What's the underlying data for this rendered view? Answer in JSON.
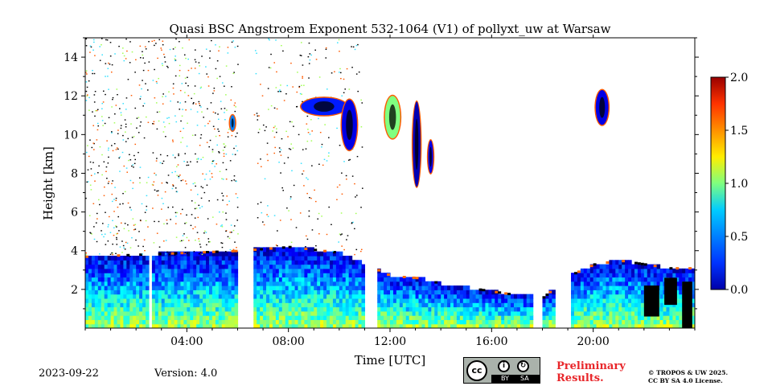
{
  "chart_data": {
    "type": "heatmap",
    "title": "Quasi BSC Angstroem Exponent 532-1064 (V1) of pollyxt_uw at Warsaw",
    "xlabel": "Time [UTC]",
    "ylabel": "Height [km]",
    "xlim": [
      0,
      24
    ],
    "ylim": [
      0,
      15
    ],
    "x_ticks": [
      "04:00",
      "08:00",
      "12:00",
      "16:00",
      "20:00"
    ],
    "x_tick_values": [
      4,
      8,
      12,
      16,
      20
    ],
    "y_ticks": [
      "2",
      "4",
      "6",
      "8",
      "10",
      "12",
      "14"
    ],
    "y_tick_values": [
      2,
      4,
      6,
      8,
      10,
      12,
      14
    ],
    "colorbar": {
      "range": [
        0,
        2
      ],
      "ticks": [
        "0.0",
        "0.5",
        "1.0",
        "1.5",
        "2.0"
      ],
      "tick_values": [
        0,
        0.5,
        1,
        1.5,
        2
      ],
      "colormap": "jet",
      "missing_color": "#000000"
    },
    "boundary_layer_top_km": [
      [
        0,
        3.6
      ],
      [
        2,
        3.7
      ],
      [
        4,
        3.8
      ],
      [
        6,
        3.9
      ],
      [
        8,
        4.1
      ],
      [
        10,
        3.8
      ],
      [
        11,
        3.2
      ],
      [
        12,
        2.6
      ],
      [
        13,
        2.5
      ],
      [
        14,
        2.2
      ],
      [
        15,
        2.0
      ],
      [
        16,
        1.8
      ],
      [
        17,
        1.6
      ],
      [
        18,
        1.5
      ],
      [
        19,
        2.6
      ],
      [
        20,
        3.2
      ],
      [
        21,
        3.4
      ],
      [
        22,
        3.2
      ],
      [
        23,
        3.0
      ],
      [
        24,
        3.0
      ]
    ],
    "cloud_features": [
      {
        "t_start": 5.7,
        "t_end": 5.9,
        "h_bottom": 10.2,
        "h_top": 11.0,
        "value": 0.5
      },
      {
        "t_start": 8.5,
        "t_end": 10.3,
        "h_bottom": 11.0,
        "h_top": 11.9,
        "value": 0.3
      },
      {
        "t_start": 10.1,
        "t_end": 10.7,
        "h_bottom": 9.2,
        "h_top": 11.8,
        "value": 0.2
      },
      {
        "t_start": 11.8,
        "t_end": 12.4,
        "h_bottom": 9.8,
        "h_top": 12.0,
        "value": 1.0
      },
      {
        "t_start": 12.9,
        "t_end": 13.2,
        "h_bottom": 7.3,
        "h_top": 11.7,
        "value": 0.1
      },
      {
        "t_start": 13.5,
        "t_end": 13.7,
        "h_bottom": 8.0,
        "h_top": 9.7,
        "value": 0.2
      },
      {
        "t_start": 20.1,
        "t_end": 20.6,
        "h_bottom": 10.5,
        "h_top": 12.3,
        "value": 0.2
      }
    ],
    "no_data_gaps": [
      [
        2.5,
        2.6
      ],
      [
        6.0,
        6.6
      ],
      [
        10.9,
        11.4
      ],
      [
        17.6,
        17.9
      ],
      [
        18.5,
        19.0
      ]
    ]
  },
  "footer": {
    "date": "2023-09-22",
    "version": "Version: 4.0",
    "preliminary_line1": "Preliminary",
    "preliminary_line2": "Results.",
    "license_line1": "© TROPOS & UW 2025.",
    "license_line2": "CC BY SA 4.0 License.",
    "cc_text": "cc",
    "cc_by": "BY",
    "cc_sa": "SA"
  },
  "colors": {
    "text": "#000000",
    "preliminary": "#e8262a",
    "background": "#ffffff"
  }
}
